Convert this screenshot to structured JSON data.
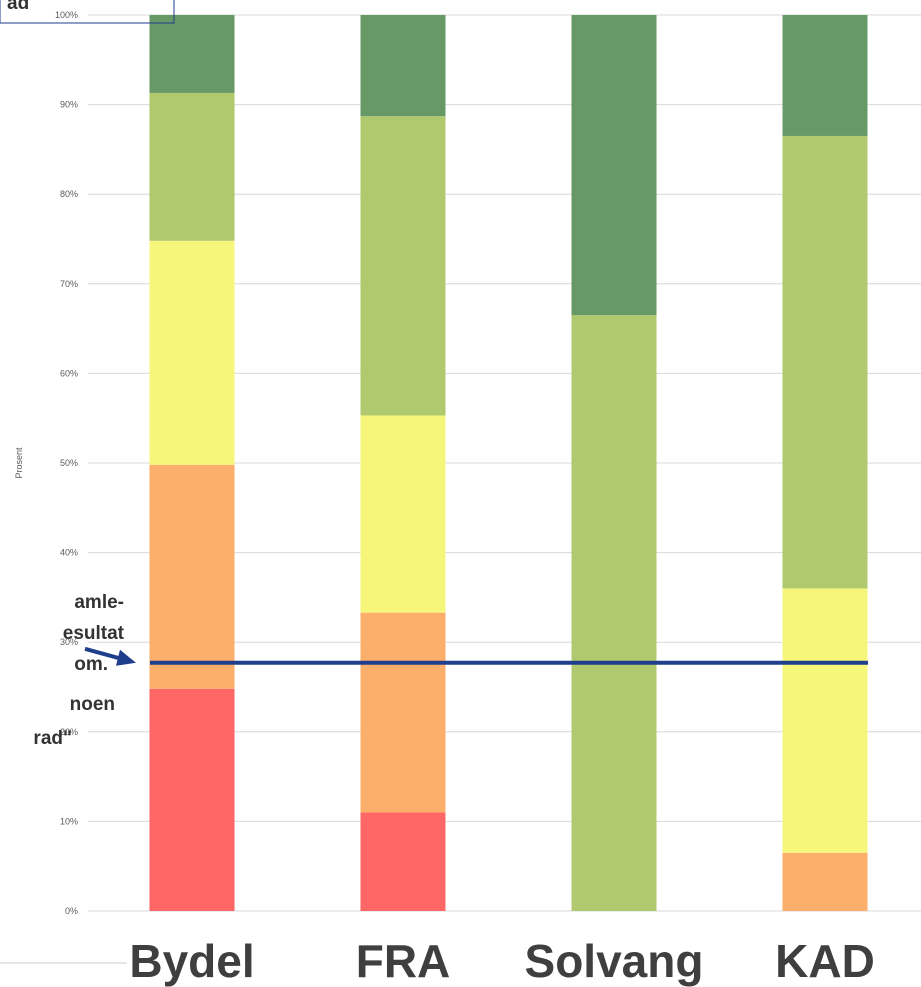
{
  "chart_data": {
    "type": "bar",
    "stacked": true,
    "categories": [
      "Bydel",
      "FRA",
      "Solvang",
      "KAD"
    ],
    "ylabel": "Prosent",
    "ylim": [
      0,
      100
    ],
    "yticks": [
      "0%",
      "10%",
      "20%",
      "30%",
      "40%",
      "50%",
      "60%",
      "70%",
      "80%",
      "90%",
      "100%"
    ],
    "grid": true,
    "series": [
      {
        "color": "#ff6666",
        "values": [
          24.8,
          11,
          0,
          0
        ]
      },
      {
        "color": "#fcae6b",
        "values": [
          25,
          22.3,
          0,
          6.5
        ]
      },
      {
        "color": "#f6f77a",
        "values": [
          25,
          22,
          0,
          29.5
        ]
      },
      {
        "color": "#b0c96e",
        "values": [
          16.5,
          33.4,
          66.5,
          50.5
        ]
      },
      {
        "color": "#669966",
        "values": [
          8.7,
          11.3,
          33.5,
          13.5
        ]
      }
    ],
    "reference_line": {
      "value": 27.7,
      "color": "#1f3e8c"
    },
    "annotations": {
      "top_box": "ad",
      "left_note": [
        "amle-",
        "esultat",
        "om.",
        "noen",
        "rad\""
      ]
    }
  }
}
